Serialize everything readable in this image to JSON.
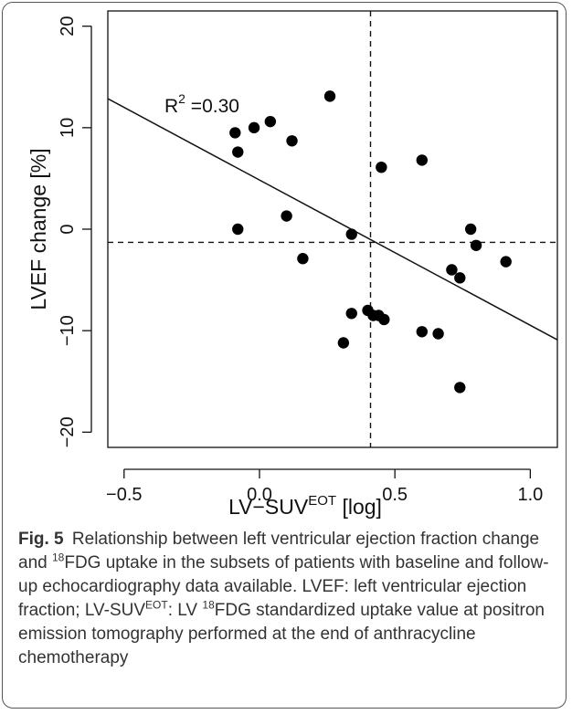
{
  "chart_data": {
    "type": "scatter",
    "xlabel_main": "LV−SUV",
    "xlabel_sup": "EOT",
    "xlabel_tail": " [log]",
    "ylabel": "LVEF change [%]",
    "xlim": [
      -0.5,
      1.0
    ],
    "ylim": [
      -20,
      20
    ],
    "x_ticks": [
      "−0.5",
      "0.0",
      "0.5",
      "1.0"
    ],
    "y_ticks": [
      "−20",
      "−10",
      "0",
      "10",
      "20"
    ],
    "annotation_main": "R",
    "annotation_sup": "2",
    "annotation_tail": " =0.30",
    "regression": {
      "x0": -0.5,
      "y0": 12.0,
      "x1": 1.1,
      "y1": -10.9
    },
    "ref_vline_x": 0.41,
    "ref_hline_y": -1.3,
    "points": [
      {
        "x": -0.09,
        "y": 9.5
      },
      {
        "x": -0.08,
        "y": 7.6
      },
      {
        "x": -0.08,
        "y": 0.0
      },
      {
        "x": -0.02,
        "y": 10.0
      },
      {
        "x": 0.04,
        "y": 10.6
      },
      {
        "x": 0.1,
        "y": 1.3
      },
      {
        "x": 0.12,
        "y": 8.7
      },
      {
        "x": 0.16,
        "y": -2.9
      },
      {
        "x": 0.26,
        "y": 13.1
      },
      {
        "x": 0.31,
        "y": -11.2
      },
      {
        "x": 0.34,
        "y": -0.5
      },
      {
        "x": 0.34,
        "y": -8.3
      },
      {
        "x": 0.4,
        "y": -8.0
      },
      {
        "x": 0.42,
        "y": -8.5
      },
      {
        "x": 0.44,
        "y": -8.5
      },
      {
        "x": 0.45,
        "y": 6.1
      },
      {
        "x": 0.46,
        "y": -8.9
      },
      {
        "x": 0.6,
        "y": 6.8
      },
      {
        "x": 0.6,
        "y": -10.1
      },
      {
        "x": 0.66,
        "y": -10.3
      },
      {
        "x": 0.71,
        "y": -4.0
      },
      {
        "x": 0.74,
        "y": -4.8
      },
      {
        "x": 0.74,
        "y": -15.6
      },
      {
        "x": 0.78,
        "y": 0.0
      },
      {
        "x": 0.8,
        "y": -1.6
      },
      {
        "x": 0.91,
        "y": -3.2
      }
    ]
  },
  "caption": {
    "label": "Fig. 5",
    "p1": "Relationship between left ventricular ejection fraction change and ",
    "sup1": "18",
    "p2": "FDG uptake in the subsets of patients with baseline and follow-up echocardiography data available. LVEF: left ventricular ejection fraction; LV-SUV",
    "sup2": "EOT",
    "p3": ": LV ",
    "sup3": "18",
    "p4": "FDG standardized uptake value at positron emission tomography performed at the end of anthracycline chemotherapy"
  }
}
